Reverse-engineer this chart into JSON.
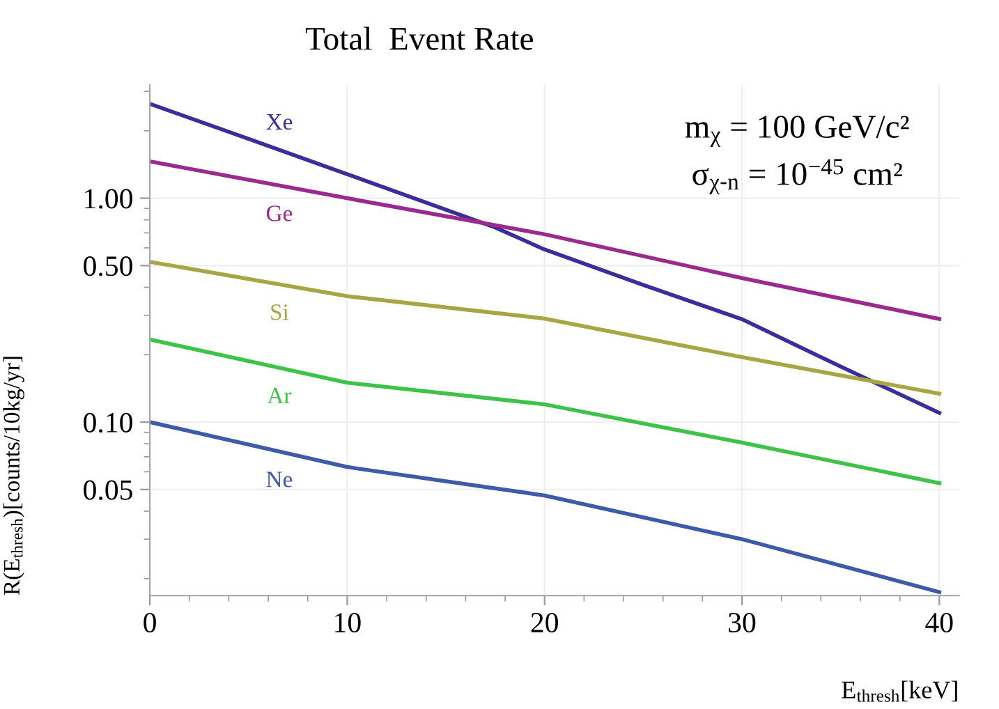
{
  "chart_data": {
    "type": "line",
    "title": "Total  Event Rate",
    "xlabel": "E$_{thresh}$[keV]",
    "ylabel": "R(E$_{thresh}$)[counts/10kg/yr]",
    "annotations": [
      "m$_{χ}$ = 100 GeV/c²",
      "σ$_{χ-n}$ = 10$^{−45}$ cm²"
    ],
    "x": [
      0,
      5,
      10,
      17.5,
      20,
      25,
      30,
      35,
      40
    ],
    "series": [
      {
        "name": "Xe",
        "color": "#3a2f9a",
        "values": [
          2.64,
          1.84,
          1.28,
          0.74,
          0.59,
          0.41,
          0.288,
          0.177,
          0.11
        ]
      },
      {
        "name": "Ge",
        "color": "#9b2a8e",
        "x": [
          0,
          10,
          20,
          30,
          40
        ],
        "values": [
          1.46,
          1.0,
          0.69,
          0.44,
          0.289
        ]
      },
      {
        "name": "Si",
        "color": "#a8a545",
        "x": [
          0,
          10,
          20,
          30,
          40
        ],
        "values": [
          0.52,
          0.365,
          0.29,
          0.195,
          0.134
        ]
      },
      {
        "name": "Ar",
        "color": "#3fc24a",
        "x": [
          0,
          10,
          20,
          30,
          40
        ],
        "values": [
          0.234,
          0.15,
          0.12,
          0.081,
          0.0534
        ]
      },
      {
        "name": "Ne",
        "color": "#3d5ba8",
        "x": [
          0,
          10,
          20,
          30,
          40
        ],
        "values": [
          0.1,
          0.063,
          0.047,
          0.03,
          0.0174
        ]
      }
    ],
    "log": "y",
    "xlim": [
      0,
      41
    ],
    "ylim": [
      0.0168,
      3.2
    ],
    "xticks": [
      0,
      10,
      20,
      30,
      40
    ],
    "yticks": [
      {
        "value": 0.05,
        "label": "0.05"
      },
      {
        "value": 0.1,
        "label": "0.10"
      },
      {
        "value": 0.5,
        "label": "0.50"
      },
      {
        "value": 1,
        "label": "1.00"
      }
    ],
    "grid": true,
    "legend": false,
    "marker": "none",
    "line_style": "solid"
  }
}
